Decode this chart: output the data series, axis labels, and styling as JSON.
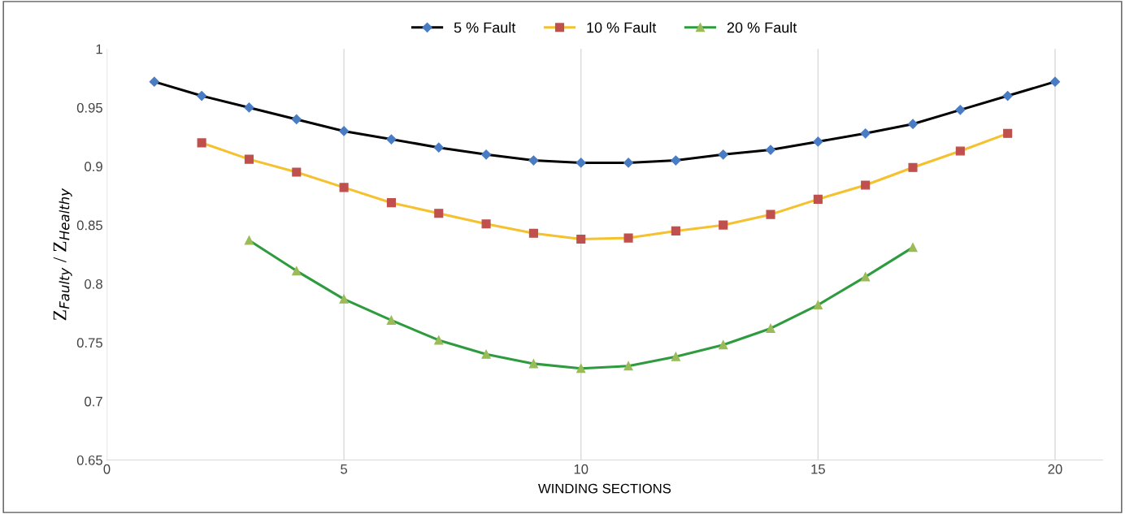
{
  "chart_data": {
    "type": "line",
    "xlabel": "WINDING SECTIONS",
    "ylabel": "Z$_{Faulty}$ / Z$_{Healthy}$",
    "xlim": [
      0,
      21
    ],
    "xticks": [
      0,
      5,
      10,
      15,
      20
    ],
    "ylim": [
      0.65,
      1
    ],
    "yticks": [
      0.65,
      0.7,
      0.75,
      0.8,
      0.85,
      0.9,
      0.95,
      1
    ],
    "grid": "x",
    "legend": "top",
    "line_style": "solid",
    "series": [
      {
        "name": "5 % Fault",
        "color": "#000000",
        "marker": "diamond",
        "colors": [
          "#4a7cc4",
          "#4a7cc4",
          "#4a7cc4",
          "#4a7cc4",
          "#4a7cc4",
          "#4a7cc4",
          "#4a7cc4",
          "#4a7cc4",
          "#4a7cc4",
          "#4a7cc4",
          "#4a7cc4",
          "#4a7cc4",
          "#4a7cc4",
          "#4a7cc4",
          "#4a7cc4",
          "#4a7cc4",
          "#4a7cc4",
          "#4a7cc4",
          "#4a7cc4",
          "#4a7cc4"
        ],
        "x": [
          1,
          2,
          3,
          4,
          5,
          6,
          7,
          8,
          9,
          10,
          11,
          12,
          13,
          14,
          15,
          16,
          17,
          18,
          19,
          20
        ],
        "values": [
          0.972,
          0.96,
          0.95,
          0.94,
          0.93,
          0.923,
          0.916,
          0.91,
          0.905,
          0.903,
          0.903,
          0.905,
          0.91,
          0.914,
          0.921,
          0.928,
          0.936,
          0.948,
          0.96,
          0.972
        ]
      },
      {
        "name": "10 % Fault",
        "color": "#f5c12e",
        "marker": "square",
        "colors": [
          "#c0504d",
          "#c0504d",
          "#c0504d",
          "#c0504d",
          "#c0504d",
          "#c0504d",
          "#c0504d",
          "#c0504d",
          "#c0504d",
          "#c0504d",
          "#c0504d",
          "#c0504d",
          "#c0504d",
          "#c0504d",
          "#c0504d",
          "#c0504d",
          "#c0504d",
          "#c0504d"
        ],
        "x": [
          2,
          3,
          4,
          5,
          6,
          7,
          8,
          9,
          10,
          11,
          12,
          13,
          14,
          15,
          16,
          17,
          18,
          19
        ],
        "values": [
          0.92,
          0.906,
          0.895,
          0.882,
          0.869,
          0.86,
          0.851,
          0.843,
          0.838,
          0.839,
          0.845,
          0.85,
          0.859,
          0.872,
          0.884,
          0.899,
          0.913,
          0.928
        ]
      },
      {
        "name": "20 % Fault",
        "color": "#2e9b3e",
        "marker": "triangle",
        "colors": [
          "#9bbb59",
          "#9bbb59",
          "#9bbb59",
          "#9bbb59",
          "#9bbb59",
          "#9bbb59",
          "#9bbb59",
          "#9bbb59",
          "#9bbb59",
          "#9bbb59",
          "#9bbb59",
          "#9bbb59",
          "#9bbb59",
          "#9bbb59",
          "#9bbb59"
        ],
        "x": [
          3,
          4,
          5,
          6,
          7,
          8,
          9,
          10,
          11,
          12,
          13,
          14,
          15,
          16,
          17
        ],
        "values": [
          0.837,
          0.811,
          0.787,
          0.769,
          0.752,
          0.74,
          0.732,
          0.728,
          0.73,
          0.738,
          0.748,
          0.762,
          0.782,
          0.806,
          0.831
        ]
      }
    ]
  }
}
